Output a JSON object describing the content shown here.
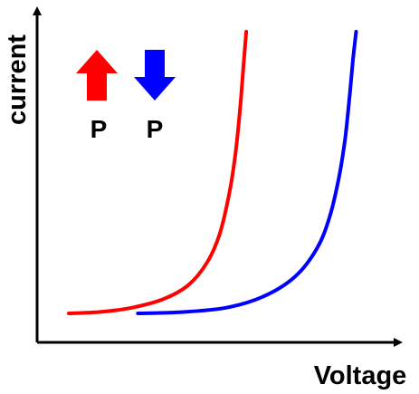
{
  "chart_data": {
    "type": "line",
    "title": "",
    "xlabel": "Voltage",
    "ylabel": "current",
    "xlim": [
      0,
      1
    ],
    "ylim": [
      0,
      1
    ],
    "grid": false,
    "legend_placement": "top-left",
    "series": [
      {
        "name": "P",
        "direction": "up",
        "color": "#ff0000",
        "x": [
          0.0,
          0.1,
          0.2,
          0.3,
          0.38,
          0.44,
          0.48,
          0.51,
          0.53,
          0.545,
          0.555,
          0.565
        ],
        "y": [
          0.0,
          0.005,
          0.02,
          0.05,
          0.1,
          0.18,
          0.28,
          0.42,
          0.56,
          0.72,
          0.86,
          1.0
        ]
      },
      {
        "name": "P",
        "direction": "down",
        "color": "#0000ff",
        "x": [
          0.22,
          0.35,
          0.5,
          0.62,
          0.72,
          0.79,
          0.83,
          0.86,
          0.88,
          0.895,
          0.905,
          0.915
        ],
        "y": [
          0.0,
          0.004,
          0.02,
          0.06,
          0.13,
          0.23,
          0.34,
          0.48,
          0.62,
          0.78,
          0.9,
          1.0
        ]
      }
    ]
  }
}
